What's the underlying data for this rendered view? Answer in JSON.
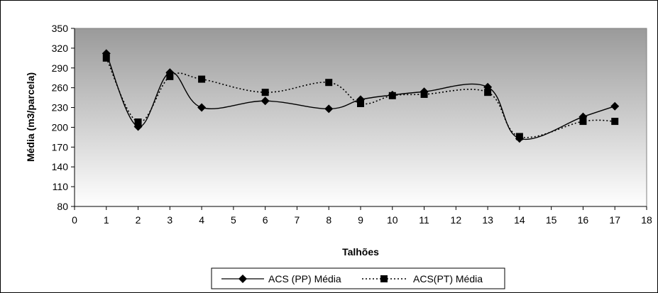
{
  "chart_data": {
    "type": "line",
    "xlabel": "Talhões",
    "ylabel": "Média (m3/parcela)",
    "xlim": [
      0,
      18
    ],
    "ylim": [
      80,
      350
    ],
    "xticks": [
      0,
      1,
      2,
      3,
      4,
      5,
      6,
      7,
      8,
      9,
      10,
      11,
      12,
      13,
      14,
      15,
      16,
      17,
      18
    ],
    "yticks": [
      80,
      110,
      140,
      170,
      200,
      230,
      260,
      290,
      320,
      350
    ],
    "grid": false,
    "plot_background": "gray gradient",
    "legend_position": "bottom-center",
    "series": [
      {
        "name": "ACS (PP) Média",
        "line_style": "solid",
        "marker": "diamond",
        "color": "#000000",
        "x": [
          1,
          2,
          3,
          4,
          6,
          8,
          9,
          10,
          11,
          13,
          14,
          16,
          17
        ],
        "values": [
          312,
          201,
          283,
          230,
          240,
          228,
          242,
          249,
          254,
          261,
          183,
          216,
          232
        ]
      },
      {
        "name": "ACS(PT) Média",
        "line_style": "dotted",
        "marker": "square",
        "color": "#000000",
        "x": [
          1,
          2,
          3,
          4,
          6,
          8,
          9,
          10,
          11,
          13,
          14,
          16,
          17
        ],
        "values": [
          305,
          208,
          277,
          273,
          253,
          268,
          236,
          248,
          250,
          253,
          186,
          209,
          209
        ]
      }
    ]
  }
}
